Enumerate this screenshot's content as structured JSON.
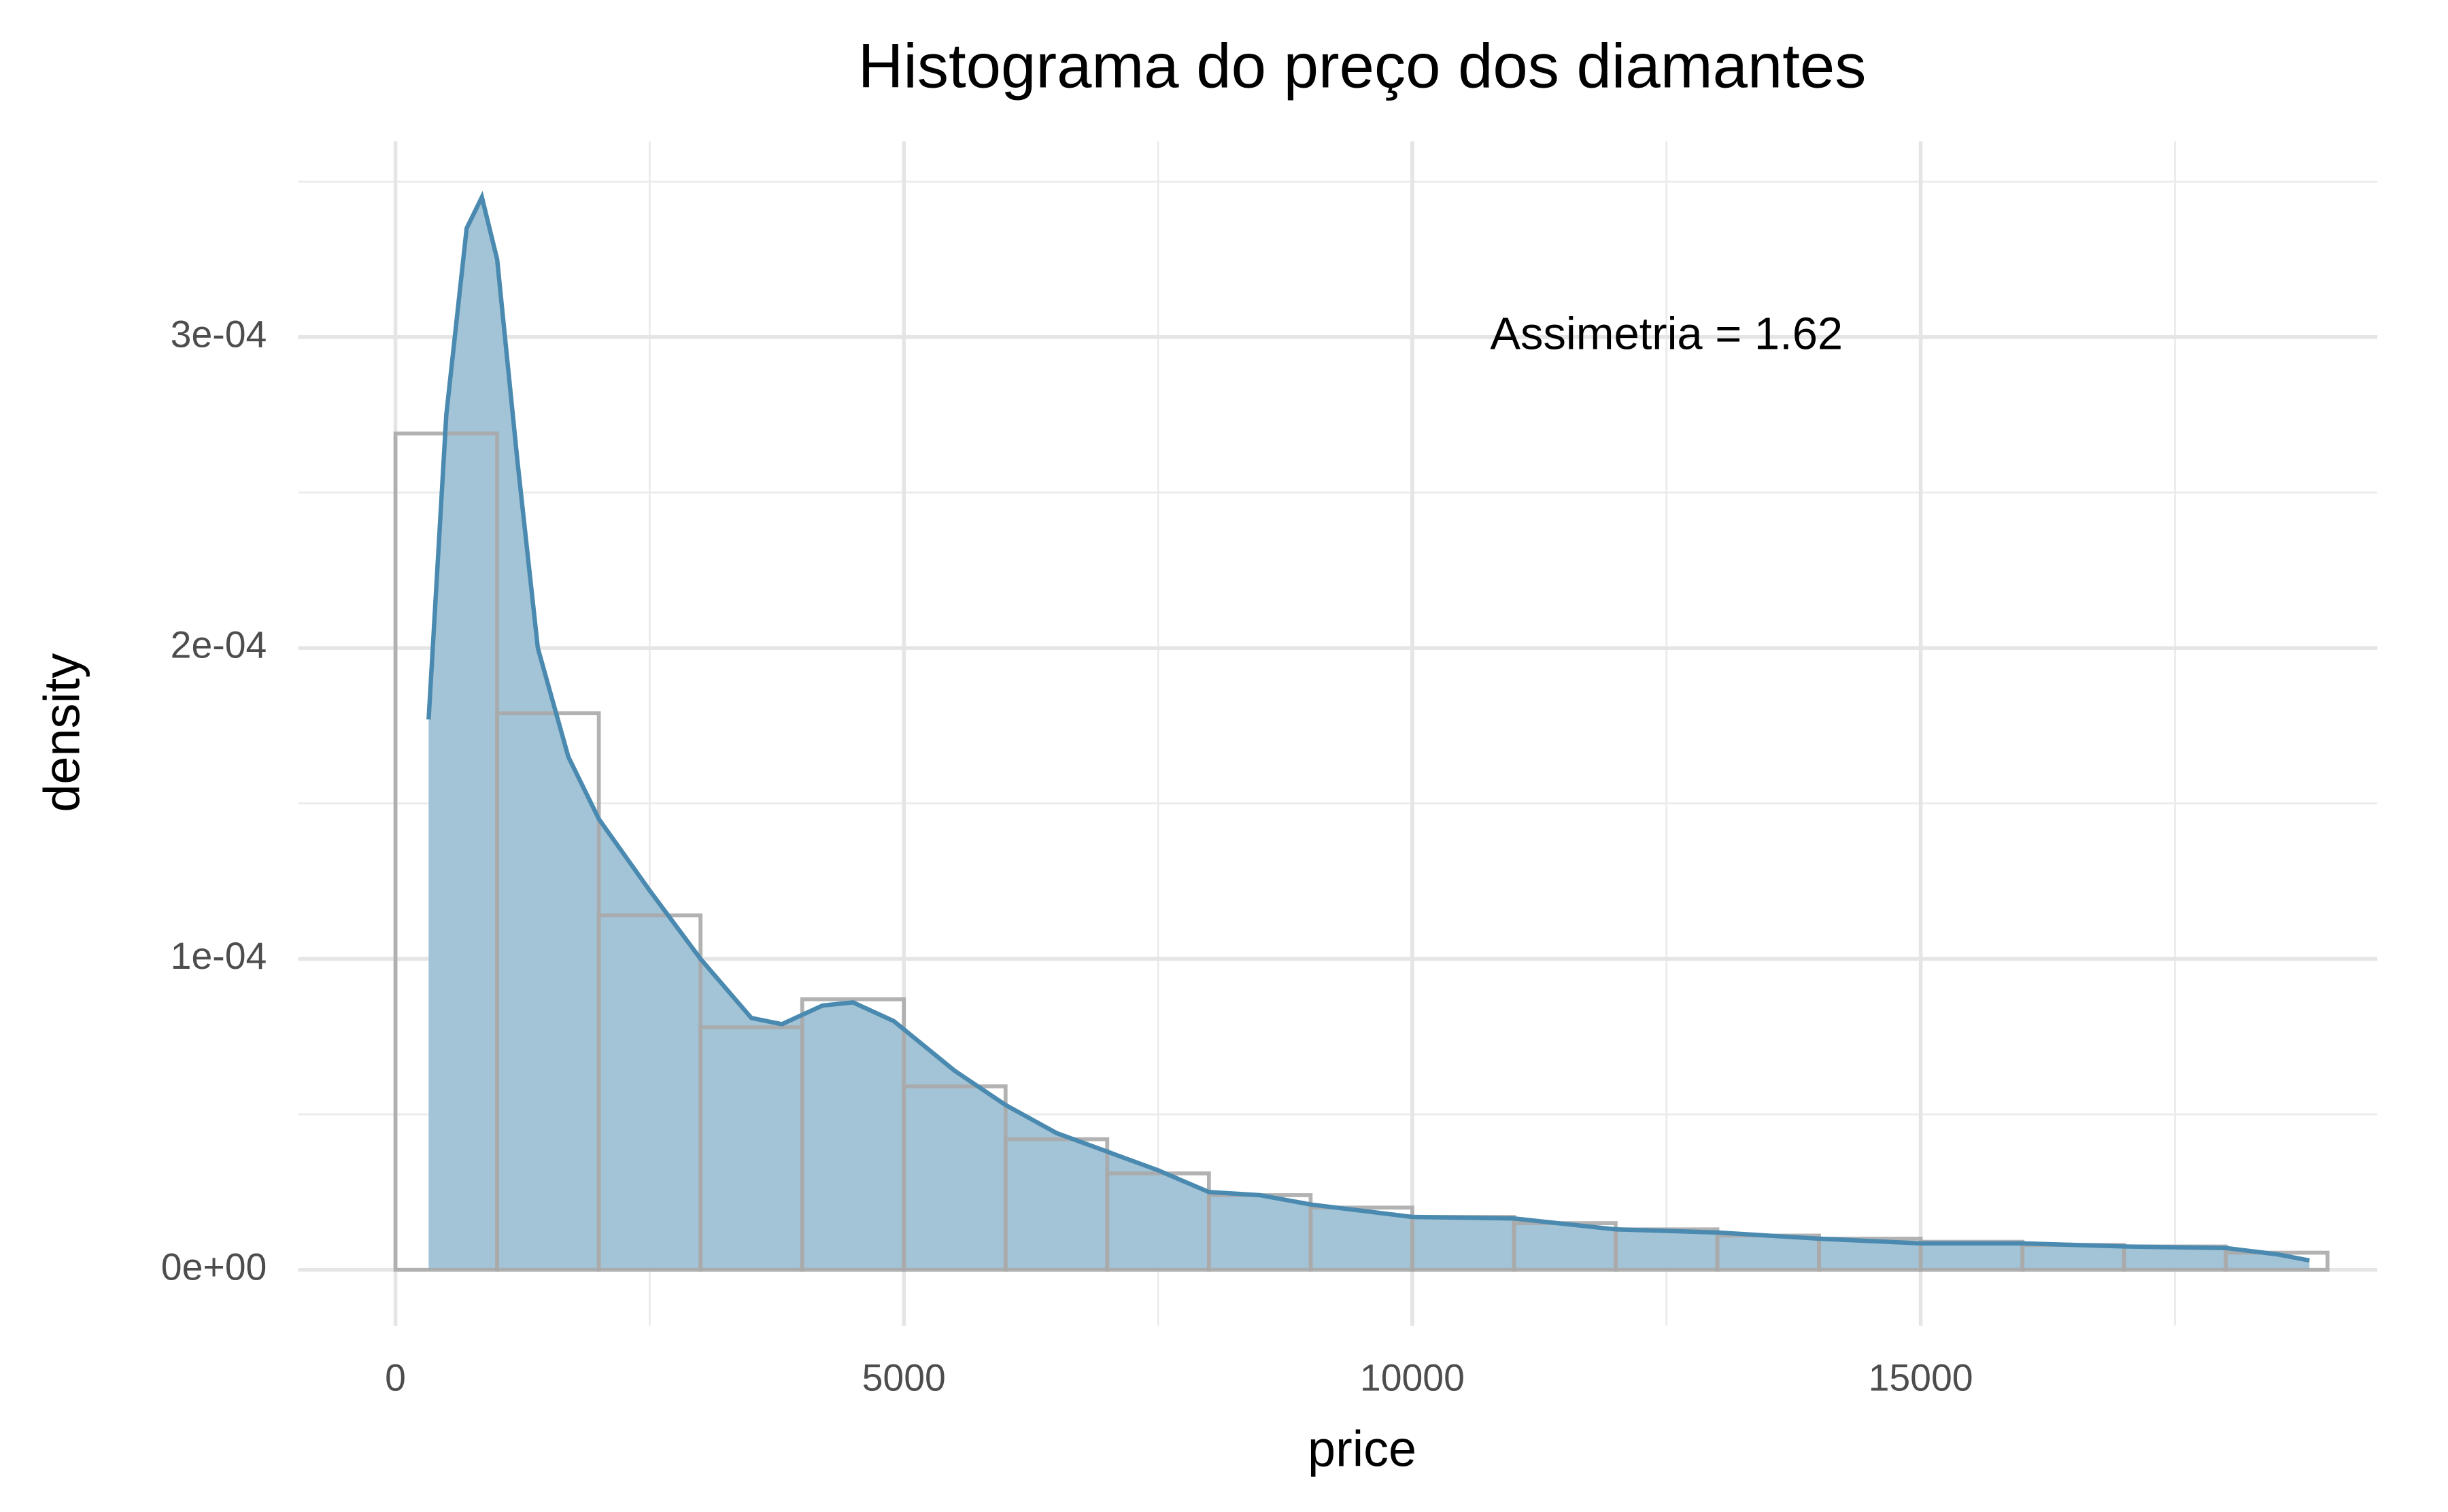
{
  "chart_data": {
    "type": "histogram",
    "title": "Histograma do preço dos diamantes",
    "x_label": "price",
    "y_label": "density",
    "bins": [
      0,
      1000,
      2000,
      3000,
      4000,
      5000,
      6000,
      7000,
      8000,
      9000,
      10000,
      11000,
      12000,
      13000,
      14000,
      15000,
      16000,
      17000,
      18000,
      19000
    ],
    "values": [
      0.000269,
      0.000179,
      0.000114,
      7.8e-05,
      8.7e-05,
      5.9e-05,
      4.2e-05,
      3.1e-05,
      2.4e-05,
      2e-05,
      1.7e-05,
      1.5e-05,
      1.3e-05,
      1.1e-05,
      1e-05,
      9e-06,
      8e-06,
      7.5e-06,
      5.5e-06
    ],
    "color": "#aaaaaa",
    "density": {
      "x": [
        326,
        500,
        700,
        850,
        1000,
        1200,
        1400,
        1700,
        2000,
        2500,
        3000,
        3500,
        3800,
        4200,
        4500,
        4900,
        5500,
        6000,
        6500,
        7000,
        7500,
        8000,
        8500,
        9000,
        10000,
        11000,
        12000,
        13000,
        14000,
        15000,
        16000,
        17000,
        18000,
        18500,
        18823
      ],
      "values": [
        0.000177,
        0.000275,
        0.000335,
        0.000345,
        0.000325,
        0.00026,
        0.0002,
        0.000165,
        0.000145,
        0.000122,
        0.0001,
        8.1e-05,
        7.9e-05,
        8.5e-05,
        8.6e-05,
        8e-05,
        6.4e-05,
        5.3e-05,
        4.4e-05,
        3.8e-05,
        3.2e-05,
        2.5e-05,
        2.4e-05,
        2.1e-05,
        1.7e-05,
        1.65e-05,
        1.3e-05,
        1.2e-05,
        1e-05,
        8.5e-06,
        8.5e-06,
        7.5e-06,
        7e-06,
        5e-06,
        3e-06
      ],
      "color": "#4a8ab0",
      "fill": "#a3c4d6"
    },
    "annotation": {
      "text": "Assimetria = 1.62",
      "x": 12500,
      "y": 0.0003
    },
    "xlim": [
      -957,
      19491
    ],
    "ylim": [
      -1.8e-05,
      0.000363
    ],
    "xticks": [
      0,
      5000,
      10000,
      15000
    ],
    "x_minor_ticks": [
      2500,
      7500,
      12500,
      17500
    ],
    "yticks": [
      {
        "value": 0,
        "label": "0e+00"
      },
      {
        "value": 0.0001,
        "label": "1e-04"
      },
      {
        "value": 0.0002,
        "label": "2e-04"
      },
      {
        "value": 0.0003,
        "label": "3e-04"
      }
    ],
    "y_minor_ticks": [
      5e-05,
      0.00015,
      0.00025,
      0.00035
    ],
    "grid": true
  }
}
